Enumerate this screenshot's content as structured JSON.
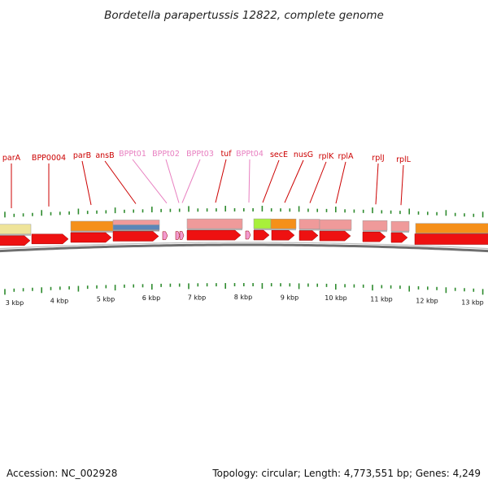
{
  "header": {
    "title": "Bordetella parapertussis 12822, complete genome"
  },
  "footer": {
    "accession": "Accession: NC_002928",
    "summary": "Topology: circular; Length: 4,773,551 bp; Genes: 4,249"
  },
  "colors": {
    "cds": "#ee1111",
    "trna": "#f29bd0",
    "label_red": "#cc0000",
    "label_pink": "#e87fc0",
    "tick": "#2e8b2e",
    "backbone": "#777777",
    "feature_pale_yellow": "#efe49a",
    "feature_orange": "#f5901a",
    "feature_salmon": "#ef9a9a",
    "feature_blue": "#5a86b8",
    "feature_green": "#a8f03a"
  },
  "chart_data": {
    "type": "genome-map",
    "scale_ticks": [
      "3 kbp",
      "4 kbp",
      "5 kbp",
      "6 kbp",
      "7 kbp",
      "8 kbp",
      "9 kbp",
      "10 kbp",
      "11 kbp",
      "12 kbp",
      "13 kbp"
    ],
    "gene_labels": [
      {
        "name": "parA",
        "type": "gene"
      },
      {
        "name": "BPP0004",
        "type": "gene"
      },
      {
        "name": "parB",
        "type": "gene"
      },
      {
        "name": "ansB",
        "type": "gene"
      },
      {
        "name": "BPPt01",
        "type": "tRNA"
      },
      {
        "name": "BPPt02",
        "type": "tRNA"
      },
      {
        "name": "BPPt03",
        "type": "tRNA"
      },
      {
        "name": "tuf",
        "type": "gene"
      },
      {
        "name": "BPPt04",
        "type": "tRNA"
      },
      {
        "name": "secE",
        "type": "gene"
      },
      {
        "name": "nusG",
        "type": "gene"
      },
      {
        "name": "rplK",
        "type": "gene"
      },
      {
        "name": "rplA",
        "type": "gene"
      },
      {
        "name": "rplJ",
        "type": "gene"
      },
      {
        "name": "rplL",
        "type": "gene"
      }
    ]
  }
}
